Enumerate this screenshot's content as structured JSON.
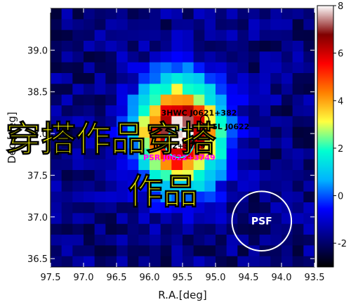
{
  "chart_data": {
    "type": "heatmap",
    "title": "",
    "xlabel": "R.A.[deg]",
    "ylabel": "Dec.[deg]",
    "xlim": [
      97.5,
      93.5
    ],
    "ylim": [
      36.4,
      39.5
    ],
    "x_ticks": [
      "97.5",
      "97.0",
      "96.5",
      "96.0",
      "95.5",
      "95.0",
      "94.5",
      "94.0",
      "93.5"
    ],
    "y_ticks": [
      "36.5",
      "37.0",
      "37.5",
      "38.0",
      "38.5",
      "39.0"
    ],
    "colorbar": {
      "range": [
        -3,
        8
      ],
      "ticks": [
        "8",
        "6",
        "4",
        "2",
        "0",
        "-2"
      ],
      "colors": [
        "#000000",
        "#000080",
        "#0000ff",
        "#00b4ff",
        "#00ffd0",
        "#ffff40",
        "#ff8000",
        "#ff0000",
        "#800000",
        "#ffffff"
      ]
    },
    "peak": {
      "ra": 95.55,
      "dec": 38.0,
      "value": 8
    },
    "sources": [
      {
        "label": "3HWC J0621+382",
        "ra": 95.25,
        "dec": 38.2,
        "marker": "triangle",
        "color": "#000000"
      },
      {
        "label": "4FGL J0622",
        "ra": 95.1,
        "dec": 38.05,
        "marker": "circle",
        "color": "#000000"
      },
      {
        "label": "J0622+3749",
        "ra": 95.55,
        "dec": 37.82,
        "marker": "dot",
        "color": "#000000"
      },
      {
        "label": "PSR J0622+3749",
        "ra": 95.55,
        "dec": 37.68,
        "marker": "none",
        "color": "#ff00ff"
      }
    ],
    "psf": {
      "label": "PSF",
      "ra": 94.3,
      "dec": 36.95,
      "radius_deg": 0.45
    },
    "overlay_text": "穿搭作品"
  }
}
